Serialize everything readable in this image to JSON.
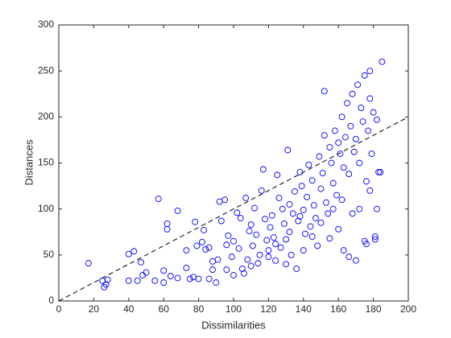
{
  "chart_data": {
    "type": "scatter",
    "xlabel": "Dissimilarities",
    "ylabel": "Distances",
    "xlim": [
      0,
      200
    ],
    "ylim": [
      0,
      300
    ],
    "xticks": [
      0,
      20,
      40,
      60,
      80,
      100,
      120,
      140,
      160,
      180,
      200
    ],
    "yticks": [
      0,
      50,
      100,
      150,
      200,
      250,
      300
    ],
    "marker": "circle",
    "color": "#0000ff",
    "reference_line": {
      "x": [
        0,
        200
      ],
      "y": [
        0,
        200
      ],
      "color": "#000000",
      "style": "dashed"
    },
    "x": [
      17,
      25,
      26,
      27,
      28,
      40,
      40,
      43,
      45,
      47,
      48,
      50,
      55,
      57,
      60,
      60,
      62,
      62,
      64,
      68,
      68,
      73,
      73,
      75,
      77,
      78,
      79,
      80,
      82,
      83,
      84,
      86,
      86,
      88,
      90,
      91,
      92,
      93,
      95,
      96,
      97,
      99,
      100,
      102,
      103,
      104,
      106,
      107,
      108,
      109,
      110,
      111,
      112,
      113,
      114,
      115,
      116,
      117,
      118,
      119,
      120,
      121,
      122,
      123,
      124,
      125,
      126,
      127,
      128,
      129,
      130,
      131,
      132,
      133,
      134,
      135,
      136,
      137,
      138,
      139,
      140,
      141,
      142,
      143,
      144,
      145,
      146,
      147,
      148,
      149,
      150,
      151,
      152,
      152,
      153,
      154,
      155,
      156,
      157,
      158,
      159,
      160,
      161,
      162,
      163,
      164,
      165,
      166,
      167,
      168,
      169,
      170,
      171,
      172,
      173,
      174,
      175,
      176,
      177,
      178,
      178,
      179,
      180,
      181,
      181,
      182,
      182,
      183,
      184,
      185,
      172,
      175,
      178,
      166,
      163,
      170,
      176,
      160,
      155,
      150,
      145,
      140,
      130,
      120,
      110,
      100,
      105,
      96,
      88,
      124,
      132,
      138,
      162,
      168,
      157
    ],
    "y": [
      41,
      22,
      15,
      18,
      23,
      51,
      22,
      54,
      22,
      42,
      28,
      31,
      22,
      111,
      20,
      33,
      78,
      84,
      27,
      25,
      98,
      55,
      36,
      24,
      26,
      86,
      60,
      24,
      64,
      77,
      56,
      24,
      58,
      43,
      20,
      45,
      108,
      87,
      110,
      61,
      71,
      48,
      65,
      96,
      57,
      90,
      30,
      112,
      45,
      76,
      83,
      60,
      101,
      72,
      41,
      50,
      120,
      143,
      89,
      66,
      55,
      80,
      93,
      69,
      44,
      137,
      112,
      58,
      100,
      84,
      67,
      164,
      105,
      50,
      95,
      119,
      35,
      87,
      140,
      125,
      99,
      73,
      113,
      148,
      81,
      131,
      104,
      90,
      60,
      157,
      122,
      139,
      180,
      228,
      107,
      95,
      167,
      150,
      128,
      185,
      115,
      172,
      160,
      200,
      145,
      178,
      215,
      138,
      190,
      225,
      162,
      176,
      235,
      150,
      210,
      195,
      245,
      130,
      185,
      220,
      250,
      160,
      205,
      70,
      67,
      100,
      197,
      140,
      140,
      260,
      100,
      65,
      120,
      48,
      55,
      44,
      62,
      78,
      68,
      85,
      70,
      55,
      40,
      48,
      38,
      28,
      35,
      34,
      34,
      62,
      75,
      92,
      110,
      95,
      100
    ]
  }
}
